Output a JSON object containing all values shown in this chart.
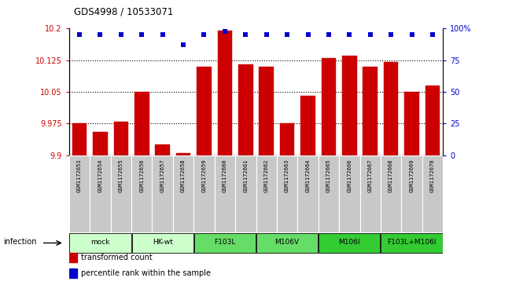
{
  "title": "GDS4998 / 10533071",
  "samples": [
    "GSM1172653",
    "GSM1172654",
    "GSM1172655",
    "GSM1172656",
    "GSM1172657",
    "GSM1172658",
    "GSM1172659",
    "GSM1172660",
    "GSM1172661",
    "GSM1172662",
    "GSM1172663",
    "GSM1172664",
    "GSM1172665",
    "GSM1172666",
    "GSM1172667",
    "GSM1172668",
    "GSM1172669",
    "GSM1172670"
  ],
  "bar_values": [
    9.975,
    9.955,
    9.98,
    10.05,
    9.925,
    9.905,
    10.11,
    10.195,
    10.115,
    10.11,
    9.975,
    10.04,
    10.13,
    10.135,
    10.11,
    10.12,
    10.05,
    10.065
  ],
  "percentile_values": [
    95,
    95,
    95,
    95,
    95,
    87,
    95,
    98,
    95,
    95,
    95,
    95,
    95,
    95,
    95,
    95,
    95,
    95
  ],
  "groups": [
    {
      "label": "mock",
      "start": 0,
      "end": 3,
      "color": "#ccffcc"
    },
    {
      "label": "HK-wt",
      "start": 3,
      "end": 6,
      "color": "#ccffcc"
    },
    {
      "label": "F103L",
      "start": 6,
      "end": 9,
      "color": "#66dd66"
    },
    {
      "label": "M106V",
      "start": 9,
      "end": 12,
      "color": "#66dd66"
    },
    {
      "label": "M106I",
      "start": 12,
      "end": 15,
      "color": "#33cc33"
    },
    {
      "label": "F103L+M106I",
      "start": 15,
      "end": 18,
      "color": "#33cc33"
    }
  ],
  "infection_label": "infection",
  "ylim": [
    9.9,
    10.2
  ],
  "yticks": [
    9.9,
    9.975,
    10.05,
    10.125,
    10.2
  ],
  "ytick_labels": [
    "9.9",
    "9.975",
    "10.05",
    "10.125",
    "10.2"
  ],
  "right_yticks": [
    0,
    25,
    50,
    75,
    100
  ],
  "right_ytick_labels": [
    "0",
    "25",
    "50",
    "75",
    "100%"
  ],
  "bar_color": "#cc0000",
  "dot_color": "#0000cc",
  "bar_width": 0.7,
  "sample_cell_color": "#c8c8c8",
  "legend_items": [
    {
      "label": "transformed count",
      "color": "#cc0000"
    },
    {
      "label": "percentile rank within the sample",
      "color": "#0000cc"
    }
  ]
}
